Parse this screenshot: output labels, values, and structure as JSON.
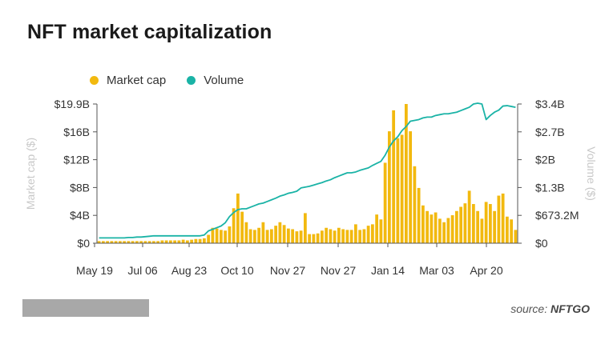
{
  "colors": {
    "market_cap": "#f2b90f",
    "volume": "#1ab3a6"
  },
  "chart_data": {
    "type": "bar",
    "title": "NFT market capitalization",
    "legend": {
      "placement": "top-left",
      "entries": [
        "Market cap",
        "Volume"
      ]
    },
    "xlabel": "",
    "ylabel": "Market cap ($)",
    "y2label": "Volume ($)",
    "x_tick_labels": [
      "May 19",
      "Jul 06",
      "Aug 23",
      "Oct 10",
      "Nov 27",
      "Nov 27",
      "Jan 14",
      "Mar 03",
      "Apr 20"
    ],
    "y_tick_labels": [
      "$19.9B",
      "$16B",
      "$12B",
      "$8B",
      "$4B",
      "$0"
    ],
    "y2_tick_labels": [
      "$3.4B",
      "$2.7B",
      "$2B",
      "$1.3B",
      "$673.2M",
      "$0"
    ],
    "ylim": [
      0,
      19.9
    ],
    "y2lim": [
      0,
      3.4
    ],
    "y_unit": "billion USD",
    "y2_unit": "billion USD",
    "grid": false,
    "series": [
      {
        "name": "Market cap",
        "type": "bar",
        "values": [
          0.3,
          0.3,
          0.3,
          0.3,
          0.3,
          0.3,
          0.3,
          0.3,
          0.3,
          0.3,
          0.3,
          0.3,
          0.3,
          0.3,
          0.3,
          0.4,
          0.4,
          0.4,
          0.4,
          0.4,
          0.5,
          0.4,
          0.5,
          0.6,
          0.6,
          0.7,
          1.2,
          2.2,
          2.1,
          1.9,
          1.8,
          2.4,
          5.0,
          7.1,
          4.5,
          3.0,
          2.0,
          1.9,
          2.2,
          3.0,
          1.9,
          2.0,
          2.5,
          3.0,
          2.6,
          2.1,
          2.0,
          1.7,
          1.8,
          4.3,
          1.3,
          1.3,
          1.4,
          1.8,
          2.2,
          2.0,
          1.8,
          2.2,
          2.0,
          1.9,
          1.9,
          2.7,
          1.9,
          2.0,
          2.5,
          2.7,
          4.1,
          3.4,
          11.5,
          16.0,
          19.0,
          15.0,
          15.5,
          19.9,
          16.0,
          11.0,
          7.9,
          5.4,
          4.6,
          4.1,
          4.4,
          3.5,
          3.0,
          3.6,
          4.0,
          4.6,
          5.2,
          5.7,
          7.5,
          5.6,
          4.6,
          3.5,
          5.9,
          5.6,
          4.6,
          6.8,
          7.1,
          3.8,
          3.4,
          1.9
        ]
      },
      {
        "name": "Volume",
        "type": "line",
        "values": [
          0.13,
          0.13,
          0.13,
          0.13,
          0.13,
          0.13,
          0.13,
          0.14,
          0.14,
          0.15,
          0.15,
          0.16,
          0.17,
          0.18,
          0.18,
          0.18,
          0.18,
          0.18,
          0.18,
          0.18,
          0.18,
          0.18,
          0.18,
          0.18,
          0.18,
          0.2,
          0.3,
          0.34,
          0.38,
          0.42,
          0.5,
          0.65,
          0.75,
          0.82,
          0.84,
          0.84,
          0.88,
          0.92,
          0.96,
          0.98,
          1.02,
          1.06,
          1.1,
          1.15,
          1.18,
          1.22,
          1.24,
          1.27,
          1.35,
          1.37,
          1.39,
          1.42,
          1.45,
          1.48,
          1.52,
          1.55,
          1.6,
          1.64,
          1.68,
          1.72,
          1.72,
          1.74,
          1.78,
          1.81,
          1.84,
          1.9,
          1.95,
          2.0,
          2.15,
          2.35,
          2.5,
          2.6,
          2.75,
          2.85,
          2.98,
          3.0,
          3.02,
          3.06,
          3.08,
          3.08,
          3.12,
          3.14,
          3.16,
          3.16,
          3.18,
          3.2,
          3.24,
          3.28,
          3.32,
          3.4,
          3.42,
          3.4,
          3.02,
          3.12,
          3.2,
          3.25,
          3.35,
          3.36,
          3.34,
          3.32
        ]
      }
    ]
  },
  "footer": {
    "source_prefix": "source: ",
    "source_name": "NFTGO"
  }
}
